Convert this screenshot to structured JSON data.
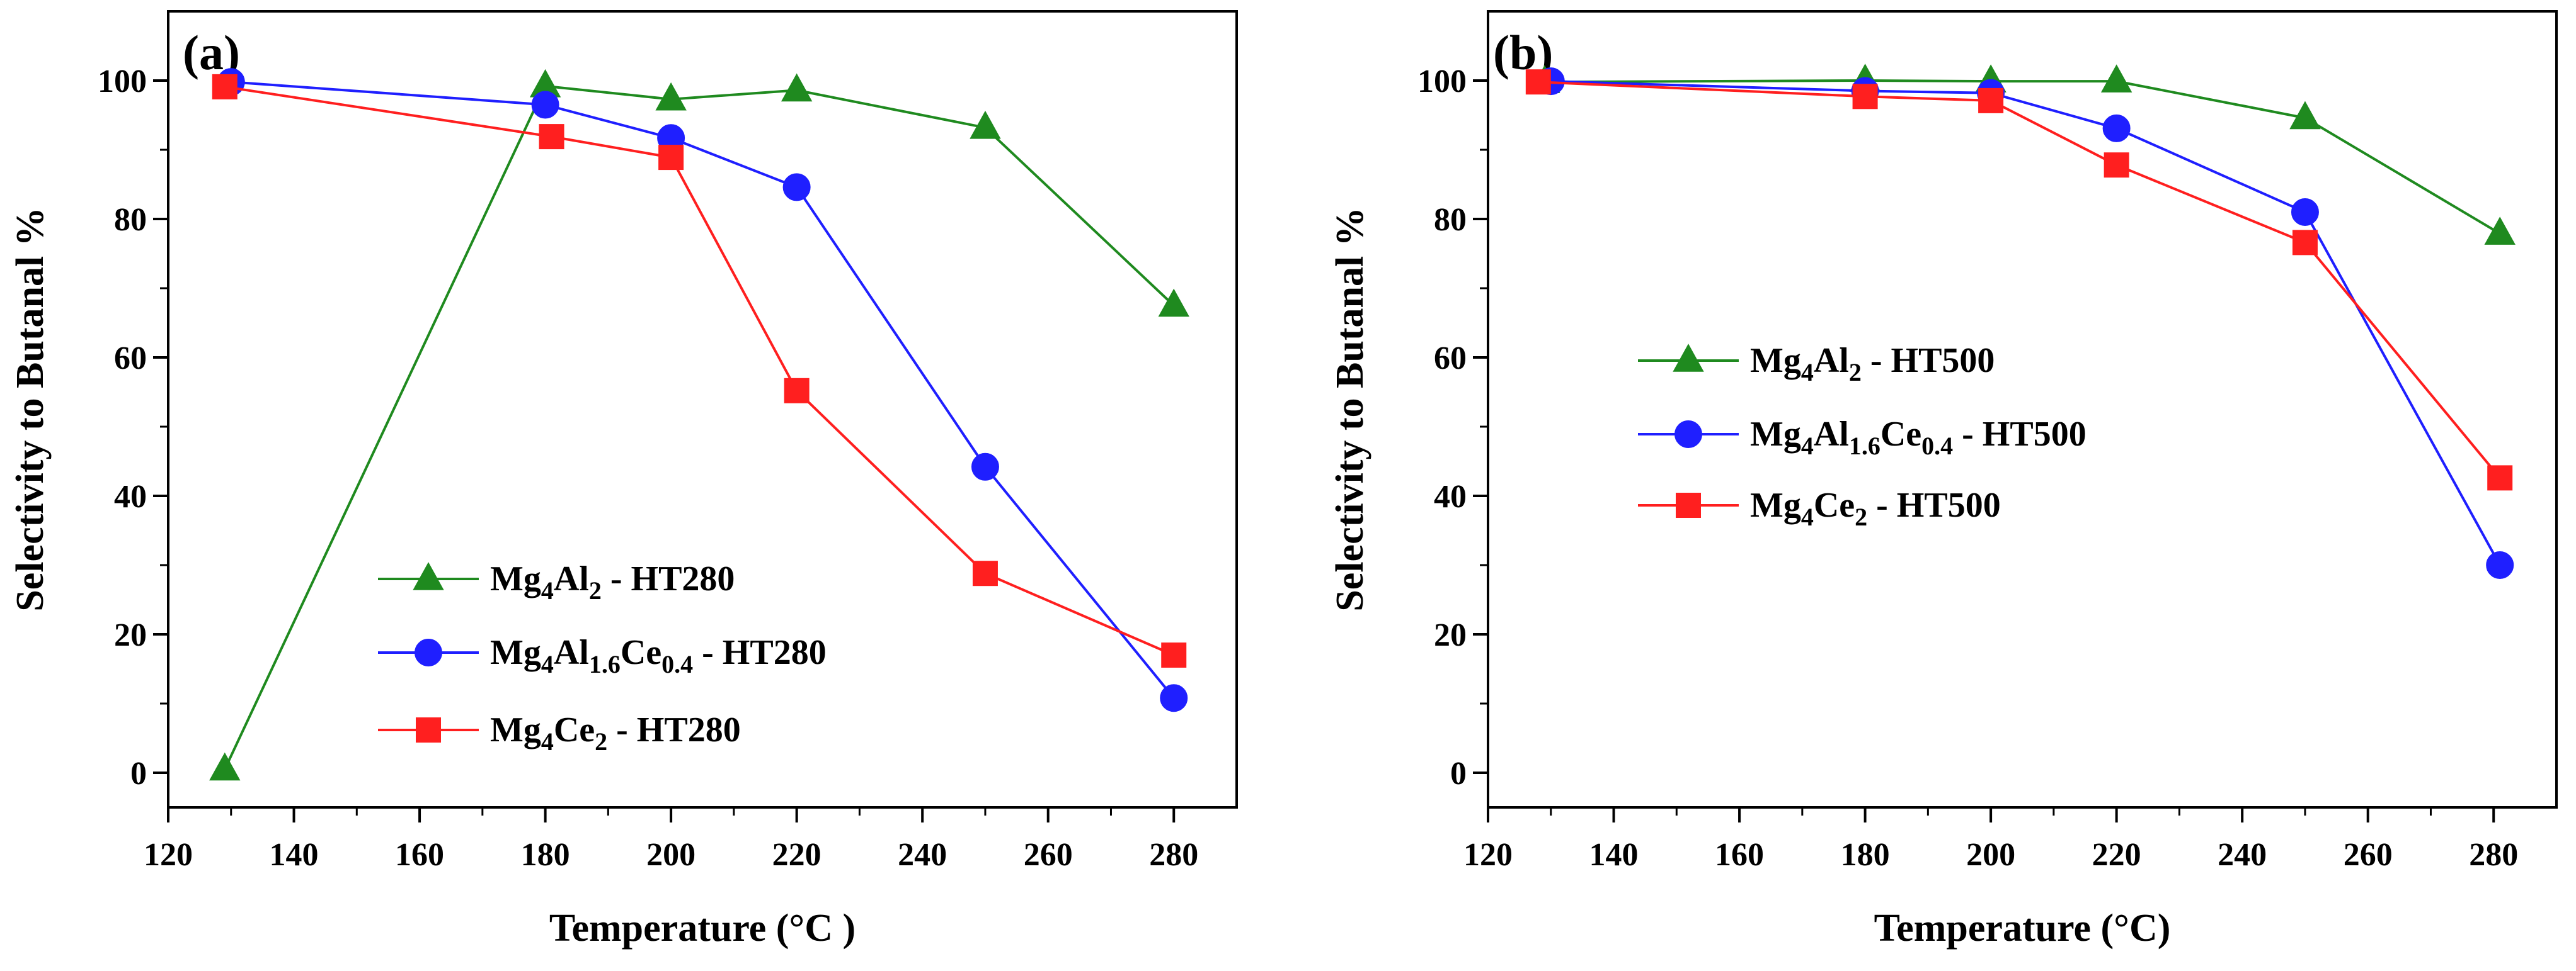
{
  "chart_data": [
    {
      "type": "line",
      "panel_label": "(a)",
      "xlabel": "Temperature (°C )",
      "ylabel": "Selectivity to Butanal %",
      "xlim": [
        120,
        290
      ],
      "ylim": [
        -5,
        110
      ],
      "xticks": [
        120,
        140,
        160,
        180,
        200,
        220,
        240,
        260,
        280
      ],
      "yticks": [
        0,
        20,
        40,
        60,
        80,
        100
      ],
      "legend_position": "lower-left",
      "series": [
        {
          "name": "Mg4Al2 - HT280",
          "legend_parts": [
            [
              "Mg",
              ""
            ],
            [
              "4",
              "sub"
            ],
            [
              "Al",
              ""
            ],
            [
              "2",
              "sub"
            ],
            [
              " - HT280",
              ""
            ]
          ],
          "color": "#1f8a1f",
          "marker": "triangle",
          "x": [
            129,
            180,
            200,
            220,
            250,
            280
          ],
          "y": [
            0.5,
            99.2,
            97.3,
            98.6,
            93.2,
            67.5
          ]
        },
        {
          "name": "Mg4Al1.6Ce0.4 - HT280",
          "legend_parts": [
            [
              "Mg",
              ""
            ],
            [
              "4",
              "sub"
            ],
            [
              "Al",
              ""
            ],
            [
              "1.6",
              "sub"
            ],
            [
              "Ce",
              ""
            ],
            [
              "0.4",
              "sub"
            ],
            [
              " - HT280",
              ""
            ]
          ],
          "color": "#1f1fff",
          "marker": "circle",
          "x": [
            130,
            180,
            200,
            220,
            250,
            280
          ],
          "y": [
            99.8,
            96.5,
            91.7,
            84.6,
            44.2,
            10.8
          ]
        },
        {
          "name": "Mg4Ce2 - HT280",
          "legend_parts": [
            [
              "Mg",
              ""
            ],
            [
              "4",
              "sub"
            ],
            [
              "Ce",
              ""
            ],
            [
              "2",
              "sub"
            ],
            [
              " - HT280",
              ""
            ]
          ],
          "color": "#ff1f1f",
          "marker": "square",
          "x": [
            129,
            181,
            200,
            220,
            250,
            280
          ],
          "y": [
            99.1,
            91.9,
            88.9,
            55.2,
            28.8,
            17.0
          ]
        }
      ]
    },
    {
      "type": "line",
      "panel_label": "(b)",
      "xlabel": "Temperature (°C)",
      "ylabel": "Selectivity to Butanal %",
      "xlim": [
        120,
        290
      ],
      "ylim": [
        -5,
        110
      ],
      "xticks": [
        120,
        140,
        160,
        180,
        200,
        220,
        240,
        260,
        280
      ],
      "yticks": [
        0,
        20,
        40,
        60,
        80,
        100
      ],
      "legend_position": "center-left",
      "series": [
        {
          "name": "Mg4Al2 - HT500",
          "legend_parts": [
            [
              "Mg",
              ""
            ],
            [
              "4",
              "sub"
            ],
            [
              "Al",
              ""
            ],
            [
              "2",
              "sub"
            ],
            [
              " - HT500",
              ""
            ]
          ],
          "color": "#1f8a1f",
          "marker": "triangle",
          "x": [
            129,
            180,
            200,
            220,
            250,
            281
          ],
          "y": [
            99.8,
            100.0,
            99.9,
            99.9,
            94.6,
            77.9
          ]
        },
        {
          "name": "Mg4Al1.6Ce0.4 - HT500",
          "legend_parts": [
            [
              "Mg",
              ""
            ],
            [
              "4",
              "sub"
            ],
            [
              "Al",
              ""
            ],
            [
              "1.6",
              "sub"
            ],
            [
              "Ce",
              ""
            ],
            [
              "0.4",
              "sub"
            ],
            [
              " - HT500",
              ""
            ]
          ],
          "color": "#1f1fff",
          "marker": "circle",
          "x": [
            130,
            180,
            200,
            220,
            250,
            281
          ],
          "y": [
            99.9,
            98.5,
            98.2,
            93.1,
            81.0,
            30.0
          ]
        },
        {
          "name": "Mg4Ce2 - HT500",
          "legend_parts": [
            [
              "Mg",
              ""
            ],
            [
              "4",
              "sub"
            ],
            [
              "Ce",
              ""
            ],
            [
              "2",
              "sub"
            ],
            [
              " - HT500",
              ""
            ]
          ],
          "color": "#ff1f1f",
          "marker": "square",
          "x": [
            128,
            180,
            200,
            220,
            250,
            281
          ],
          "y": [
            99.8,
            97.7,
            97.1,
            87.8,
            76.6,
            42.6
          ]
        }
      ]
    }
  ]
}
